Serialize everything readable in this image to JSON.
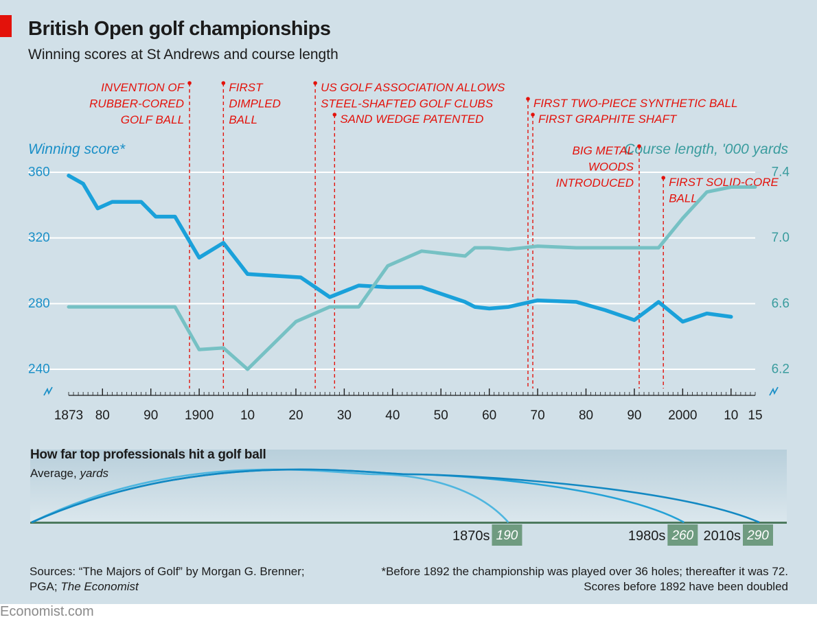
{
  "header": {
    "title": "British Open golf championships",
    "subtitle": "Winning scores at St Andrews and course length"
  },
  "chart_data": {
    "type": "line",
    "title": "British Open golf championships",
    "subtitle": "Winning scores at St Andrews and course length",
    "left_axis": {
      "label": "Winning score*",
      "ticks": [
        240,
        280,
        320,
        360
      ],
      "ylim": [
        240,
        360
      ]
    },
    "right_axis": {
      "label": "Course length, '000 yards",
      "ticks": [
        "6.2",
        "6.6",
        "7.0",
        "7.4"
      ],
      "ylim": [
        6.2,
        7.4
      ]
    },
    "x_axis": {
      "xlim": [
        1873,
        2015
      ],
      "ticks": [
        {
          "value": 1873,
          "label": "1873"
        },
        {
          "value": 1880,
          "label": "80"
        },
        {
          "value": 1890,
          "label": "90"
        },
        {
          "value": 1900,
          "label": "1900"
        },
        {
          "value": 1910,
          "label": "10"
        },
        {
          "value": 1920,
          "label": "20"
        },
        {
          "value": 1930,
          "label": "30"
        },
        {
          "value": 1940,
          "label": "40"
        },
        {
          "value": 1950,
          "label": "50"
        },
        {
          "value": 1960,
          "label": "60"
        },
        {
          "value": 1970,
          "label": "70"
        },
        {
          "value": 1980,
          "label": "80"
        },
        {
          "value": 1990,
          "label": "90"
        },
        {
          "value": 2000,
          "label": "2000"
        },
        {
          "value": 2010,
          "label": "10"
        },
        {
          "value": 2015,
          "label": "15"
        }
      ]
    },
    "grid": true,
    "series": [
      {
        "name": "Winning score*",
        "axis": "left",
        "color": "#1aa1da",
        "x": [
          1873,
          1876,
          1879,
          1882,
          1885,
          1888,
          1891,
          1895,
          1900,
          1905,
          1910,
          1921,
          1927,
          1933,
          1939,
          1946,
          1955,
          1957,
          1960,
          1964,
          1970,
          1978,
          1984,
          1990,
          1995,
          2000,
          2005,
          2010
        ],
        "y": [
          358,
          353,
          338,
          342,
          342,
          342,
          333,
          333,
          308,
          317,
          298,
          296,
          284,
          291,
          290,
          290,
          281,
          278,
          277,
          278,
          282,
          281,
          276,
          270,
          281,
          269,
          274,
          272
        ]
      },
      {
        "name": "Course length, '000 yards",
        "axis": "right",
        "color": "#76c1c4",
        "x": [
          1873,
          1895,
          1900,
          1905,
          1910,
          1920,
          1927,
          1933,
          1939,
          1946,
          1955,
          1957,
          1960,
          1964,
          1970,
          1978,
          1984,
          1990,
          1995,
          2000,
          2005,
          2010,
          2015
        ],
        "y": [
          6.58,
          6.58,
          6.32,
          6.33,
          6.2,
          6.49,
          6.58,
          6.58,
          6.83,
          6.92,
          6.89,
          6.94,
          6.94,
          6.93,
          6.95,
          6.94,
          6.94,
          6.94,
          6.94,
          7.12,
          7.28,
          7.31,
          7.31
        ]
      }
    ],
    "annotations": [
      {
        "x": 1898,
        "text": [
          "INVENTION OF",
          "RUBBER-CORED",
          "GOLF BALL"
        ],
        "side": "left",
        "level": 0
      },
      {
        "x": 1905,
        "text": [
          "FIRST",
          "DIMPLED",
          "BALL"
        ],
        "side": "right",
        "level": 0
      },
      {
        "x": 1924,
        "text": [
          "US GOLF ASSOCIATION ALLOWS",
          "STEEL-SHAFTED GOLF CLUBS"
        ],
        "side": "right",
        "level": 0
      },
      {
        "x": 1928,
        "text": [
          "SAND WEDGE PATENTED"
        ],
        "side": "right",
        "level": 1
      },
      {
        "x": 1968,
        "text": [
          "FIRST TWO-PIECE SYNTHETIC BALL"
        ],
        "side": "right",
        "level": 0.5
      },
      {
        "x": 1969,
        "text": [
          "FIRST GRAPHITE SHAFT"
        ],
        "side": "right",
        "level": 1
      },
      {
        "x": 1991,
        "text": [
          "BIG METAL",
          "WOODS",
          "INTRODUCED"
        ],
        "side": "left",
        "level": 2
      },
      {
        "x": 1996,
        "text": [
          "FIRST SOLID-CORE",
          "BALL"
        ],
        "side": "right",
        "level": 3
      }
    ]
  },
  "inset": {
    "title": "How far top professionals hit a golf ball",
    "subtitle_plain": "Average, ",
    "subtitle_unit": "yards",
    "drives": [
      {
        "era": "1870s",
        "yards": "190",
        "color": "#4fb6df"
      },
      {
        "era": "1980s",
        "yards": "260",
        "color": "#24a1d6"
      },
      {
        "era": "2010s",
        "yards": "290",
        "color": "#1288c2"
      }
    ]
  },
  "footer": {
    "sources_line1": "Sources: “The Majors of Golf” by Morgan G. Brenner;",
    "sources_line2_plain": "PGA; ",
    "sources_line2_italic": "The Economist",
    "note_line1": "*Before 1892 the championship was played over 36 holes; thereafter it was 72.",
    "note_line2": "Scores before 1892 have been doubled",
    "brand": "Economist.com"
  },
  "colors": {
    "background": "#d1e0e8",
    "score_line": "#1aa1da",
    "length_line": "#76c1c4",
    "annotation": "#e3120b",
    "left_axis_text": "#1a8fc7",
    "right_axis_text": "#3a9c9e",
    "accent_bar": "#e3120b"
  }
}
